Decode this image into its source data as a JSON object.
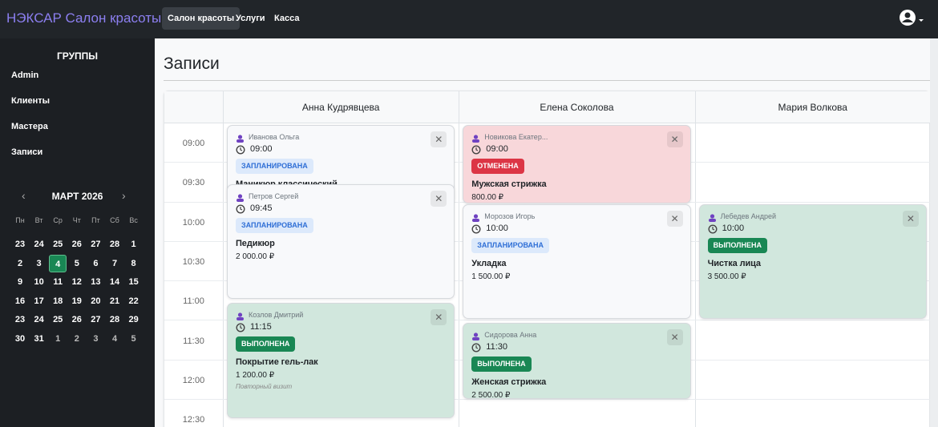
{
  "navbar": {
    "brand": "НЭКСАР Салон красоты",
    "items": [
      "Салон красоты",
      "Услуги",
      "Касса"
    ]
  },
  "sidebar": {
    "heading": "ГРУППЫ",
    "items": [
      "Admin",
      "Клиенты",
      "Мастера",
      "Записи"
    ],
    "calendar": {
      "prev": "‹",
      "month": "МАРТ 2026",
      "next": "›",
      "weekdays": [
        "Пн",
        "Вт",
        "Ср",
        "Чт",
        "Пт",
        "Сб",
        "Вс"
      ],
      "weeks": [
        [
          23,
          24,
          25,
          26,
          27,
          28,
          1
        ],
        [
          2,
          3,
          4,
          5,
          6,
          7,
          8
        ],
        [
          9,
          10,
          11,
          12,
          13,
          14,
          15
        ],
        [
          16,
          17,
          18,
          19,
          20,
          21,
          22
        ],
        [
          23,
          24,
          25,
          26,
          27,
          28,
          29
        ],
        [
          30,
          31,
          1,
          2,
          3,
          4,
          5
        ]
      ]
    }
  },
  "main": {
    "title": "Записи",
    "times": [
      "09:00",
      "09:30",
      "10:00",
      "10:30",
      "11:00",
      "11:30",
      "12:00",
      "12:30"
    ],
    "masters": [
      {
        "name": "Анна Кудрявцева",
        "appointments": [
          {
            "client": "Иванова Ольга",
            "time": "09:00",
            "status": "ЗАПЛАНИРОВАНА",
            "service": "Маникюр классический",
            "close": "✕"
          },
          {
            "client": "Петров Сергей",
            "time": "09:45",
            "status": "ЗАПЛАНИРОВАНА",
            "service": "Педикюр",
            "price": "2 000.00 ₽",
            "close": "✕"
          },
          {
            "client": "Козлов Дмитрий",
            "time": "11:15",
            "status": "ВЫПОЛНЕНА",
            "service": "Покрытие гель-лак",
            "price": "1 200.00 ₽",
            "note": "Повторный визит",
            "close": "✕"
          }
        ]
      },
      {
        "name": "Елена Соколова",
        "appointments": [
          {
            "client": "Новикова Екатер...",
            "time": "09:00",
            "status": "ОТМЕНЕНА",
            "service": "Мужская стрижка",
            "price": "800.00 ₽",
            "close": "✕"
          },
          {
            "client": "Морозов Игорь",
            "time": "10:00",
            "status": "ЗАПЛАНИРОВАНА",
            "service": "Укладка",
            "price": "1 500.00 ₽",
            "close": "✕"
          },
          {
            "client": "Сидорова Анна",
            "time": "11:30",
            "status": "ВЫПОЛНЕНА",
            "service": "Женская стрижка",
            "price": "2 500.00 ₽",
            "close": "✕"
          }
        ]
      },
      {
        "name": "Мария Волкова",
        "appointments": [
          {
            "client": "Лебедев Андрей",
            "time": "10:00",
            "status": "ВЫПОЛНЕНА",
            "service": "Чистка лица",
            "price": "3 500.00 ₽",
            "close": "✕"
          }
        ]
      }
    ]
  }
}
